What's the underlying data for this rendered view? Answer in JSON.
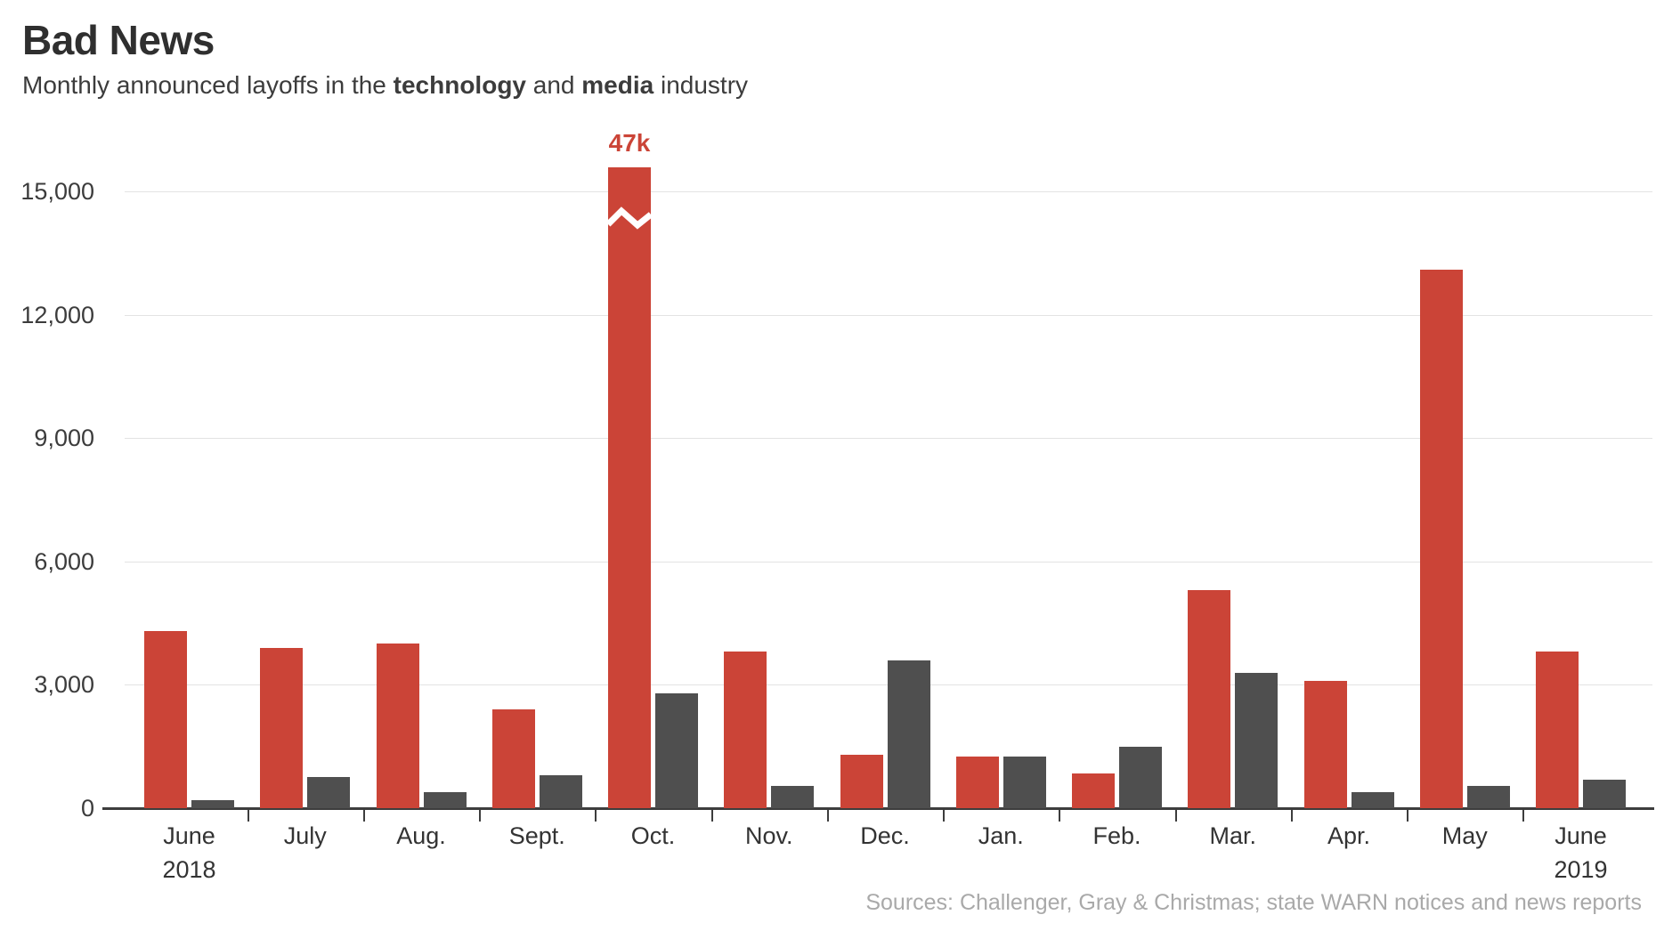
{
  "header": {
    "title": "Bad News",
    "subtitle": {
      "prefix": "Monthly announced layoffs in the ",
      "technology": "technology",
      "and": " and ",
      "media": "media",
      "industry": " industry"
    }
  },
  "footer": {
    "source": "Sources: Challenger, Gray & Christmas; state WARN notices and news reports"
  },
  "colors": {
    "technology": "#cb4437",
    "media": "#4f4f4f",
    "title_text": "#2f2f2f",
    "axis_text": "#3c3c3c",
    "gridline": "#e3e3e3",
    "axis_line": "#3d3d3d",
    "source_text": "#a9a9a9",
    "background": "#ffffff"
  },
  "chart_data": {
    "type": "bar",
    "title": "Bad News",
    "subtitle": "Monthly announced layoffs in the technology and media industry",
    "categories": [
      {
        "label": "June",
        "year": "2018"
      },
      {
        "label": "July"
      },
      {
        "label": "Aug."
      },
      {
        "label": "Sept."
      },
      {
        "label": "Oct."
      },
      {
        "label": "Nov."
      },
      {
        "label": "Dec."
      },
      {
        "label": "Jan."
      },
      {
        "label": "Feb."
      },
      {
        "label": "Mar."
      },
      {
        "label": "Apr."
      },
      {
        "label": "May"
      },
      {
        "label": "June",
        "year": "2019"
      }
    ],
    "series": [
      {
        "name": "technology",
        "color": "#cb4437",
        "values": [
          4300,
          3900,
          4000,
          2400,
          47000,
          3800,
          1300,
          1250,
          850,
          5300,
          3100,
          13100,
          3800
        ]
      },
      {
        "name": "media",
        "color": "#4f4f4f",
        "values": [
          200,
          750,
          400,
          800,
          2800,
          550,
          3600,
          1250,
          1500,
          3300,
          400,
          550,
          700
        ]
      }
    ],
    "ylim": [
      0,
      15000
    ],
    "yticks": [
      0,
      3000,
      6000,
      9000,
      12000,
      15000
    ],
    "ytick_labels": [
      "0",
      "3,000",
      "6,000",
      "9,000",
      "12,000",
      "15,000"
    ],
    "grid": true,
    "legend_position": "none",
    "annotations": [
      {
        "text": "47k",
        "series": "technology",
        "category_index": 4
      }
    ],
    "axis_break": {
      "series": "technology",
      "category_index": 4,
      "actual_value": 47000,
      "display_value": 15580
    }
  }
}
